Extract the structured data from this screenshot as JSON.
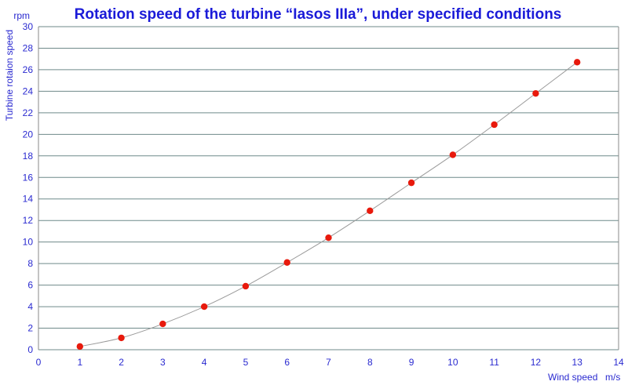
{
  "chart_data": {
    "type": "scatter",
    "title": "Rotation speed of the turbine “Iasos IIIa”, under specified conditions",
    "ylabel": "Turbine rotaion speed",
    "yunit": "rpm",
    "xlabel": "Wind speed",
    "xunit": "m/s",
    "xlim": [
      0,
      14
    ],
    "ylim": [
      0,
      30
    ],
    "xticks": [
      0,
      1,
      2,
      3,
      4,
      5,
      6,
      7,
      8,
      9,
      10,
      11,
      12,
      13,
      14
    ],
    "yticks": [
      0,
      2,
      4,
      6,
      8,
      10,
      12,
      14,
      16,
      18,
      20,
      22,
      24,
      26,
      28,
      30
    ],
    "grid": true,
    "trendline": true,
    "series": [
      {
        "x": [
          1,
          2,
          3,
          4,
          5,
          6,
          7,
          8,
          9,
          10,
          11,
          12,
          13
        ],
        "y": [
          0.3,
          1.1,
          2.4,
          4.0,
          5.9,
          8.1,
          10.4,
          12.9,
          15.5,
          18.1,
          20.9,
          23.8,
          26.7
        ]
      }
    ],
    "colors": {
      "title": "#1a1ad8",
      "text": "#2a2ad0",
      "marker": "#e8190c",
      "grid": "#6f8a8a",
      "curve": "#9a9a9a"
    }
  }
}
